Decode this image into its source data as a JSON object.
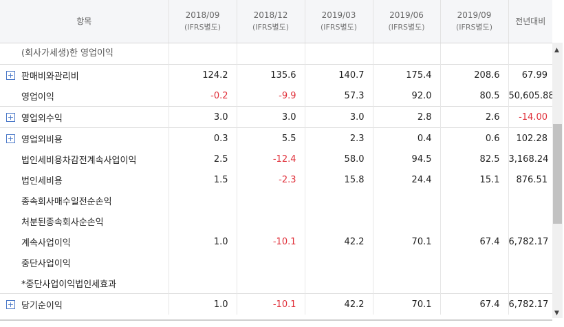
{
  "header": {
    "item": "항목",
    "periods": [
      {
        "date": "2018/09",
        "basis": "(IFRS별도)"
      },
      {
        "date": "2018/12",
        "basis": "(IFRS별도)"
      },
      {
        "date": "2019/03",
        "basis": "(IFRS별도)"
      },
      {
        "date": "2019/06",
        "basis": "(IFRS별도)"
      },
      {
        "date": "2019/09",
        "basis": "(IFRS별도)"
      }
    ],
    "yoy": "전년대비"
  },
  "partial_row_label": "(회사가세생)한 영업이익",
  "rows": [
    {
      "label": "판매비와관리비",
      "expand": "+",
      "values": [
        "124.2",
        "135.6",
        "140.7",
        "175.4",
        "208.6"
      ],
      "yoy": "67.99",
      "neg": [
        false,
        false,
        false,
        false,
        false
      ],
      "yoy_neg": false
    },
    {
      "label": "영업이익",
      "expand": "",
      "values": [
        "-0.2",
        "-9.9",
        "57.3",
        "92.0",
        "80.5"
      ],
      "yoy": "50,605.88",
      "neg": [
        true,
        true,
        false,
        false,
        false
      ],
      "yoy_neg": false
    },
    {
      "label": "영업외수익",
      "expand": "+",
      "values": [
        "3.0",
        "3.0",
        "3.0",
        "2.8",
        "2.6"
      ],
      "yoy": "-14.00",
      "neg": [
        false,
        false,
        false,
        false,
        false
      ],
      "yoy_neg": true
    },
    {
      "label": "영업외비용",
      "expand": "+",
      "values": [
        "0.3",
        "5.5",
        "2.3",
        "0.4",
        "0.6"
      ],
      "yoy": "102.28",
      "neg": [
        false,
        false,
        false,
        false,
        false
      ],
      "yoy_neg": false
    },
    {
      "label": "법인세비용차감전계속사업이익",
      "expand": "",
      "values": [
        "2.5",
        "-12.4",
        "58.0",
        "94.5",
        "82.5"
      ],
      "yoy": "3,168.24",
      "neg": [
        false,
        true,
        false,
        false,
        false
      ],
      "yoy_neg": false
    },
    {
      "label": "법인세비용",
      "expand": "",
      "values": [
        "1.5",
        "-2.3",
        "15.8",
        "24.4",
        "15.1"
      ],
      "yoy": "876.51",
      "neg": [
        false,
        true,
        false,
        false,
        false
      ],
      "yoy_neg": false
    },
    {
      "label": "종속회사매수일전순손익",
      "expand": "",
      "values": [
        "",
        "",
        "",
        "",
        ""
      ],
      "yoy": "",
      "neg": [
        false,
        false,
        false,
        false,
        false
      ],
      "yoy_neg": false
    },
    {
      "label": "처분된종속회사순손익",
      "expand": "",
      "values": [
        "",
        "",
        "",
        "",
        ""
      ],
      "yoy": "",
      "neg": [
        false,
        false,
        false,
        false,
        false
      ],
      "yoy_neg": false
    },
    {
      "label": "계속사업이익",
      "expand": "",
      "values": [
        "1.0",
        "-10.1",
        "42.2",
        "70.1",
        "67.4"
      ],
      "yoy": "6,782.17",
      "neg": [
        false,
        true,
        false,
        false,
        false
      ],
      "yoy_neg": false
    },
    {
      "label": "중단사업이익",
      "expand": "",
      "values": [
        "",
        "",
        "",
        "",
        ""
      ],
      "yoy": "",
      "neg": [
        false,
        false,
        false,
        false,
        false
      ],
      "yoy_neg": false
    },
    {
      "label": "*중단사업이익법인세효과",
      "expand": "",
      "values": [
        "",
        "",
        "",
        "",
        ""
      ],
      "yoy": "",
      "neg": [
        false,
        false,
        false,
        false,
        false
      ],
      "yoy_neg": false
    },
    {
      "label": "당기순이익",
      "expand": "+",
      "values": [
        "1.0",
        "-10.1",
        "42.2",
        "70.1",
        "67.4"
      ],
      "yoy": "6,782.17",
      "neg": [
        false,
        true,
        false,
        false,
        false
      ],
      "yoy_neg": false
    }
  ],
  "scrollbar": {
    "up_icon": "▲",
    "down_icon": "▼"
  },
  "colors": {
    "negative": "#e0303a",
    "header_bg": "#f5f6f8",
    "expand_icon": "#4a78c8"
  }
}
